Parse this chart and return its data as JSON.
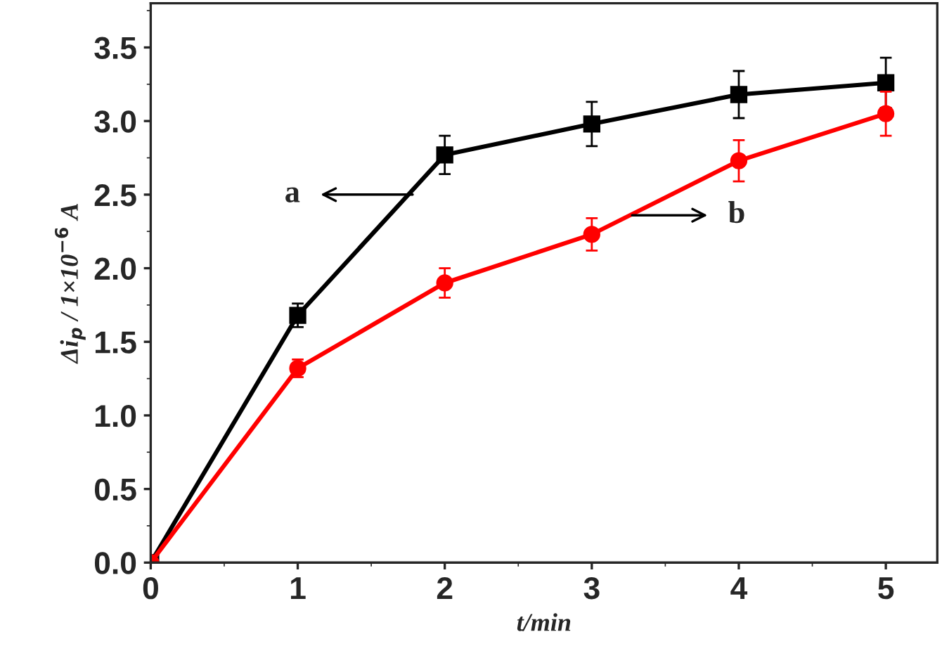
{
  "chart_data": {
    "type": "line",
    "xlabel": "t/min",
    "ylabel": "Δi$_{p}$ / 1×10$^{−6}$ A",
    "x": [
      0,
      1,
      2,
      3,
      4,
      5
    ],
    "series": [
      {
        "color": "#000000",
        "marker": "square",
        "values": [
          0,
          1.68,
          2.77,
          2.98,
          3.18,
          3.26
        ],
        "errors": [
          null,
          0.08,
          0.13,
          0.15,
          0.16,
          0.17
        ]
      },
      {
        "color": "#ff0000",
        "marker": "circle",
        "values": [
          0,
          1.32,
          1.9,
          2.23,
          2.73,
          3.05
        ],
        "errors": [
          null,
          0.06,
          0.1,
          0.11,
          0.14,
          0.15
        ]
      }
    ],
    "annotations": [
      "a",
      "b"
    ],
    "xlim": [
      0,
      5.35
    ],
    "xticks": [
      0,
      1,
      2,
      3,
      4,
      5
    ],
    "ylim": [
      0,
      3.8
    ],
    "yticks": [
      {
        "value": 0,
        "label": "0.0"
      },
      0.5,
      {
        "value": 1,
        "label": "1.0"
      },
      1.5,
      {
        "value": 2,
        "label": "2.0"
      },
      2.5,
      {
        "value": 3,
        "label": "3.0"
      },
      3.5
    ],
    "grid": false,
    "legend": false,
    "line_style": "solid"
  }
}
